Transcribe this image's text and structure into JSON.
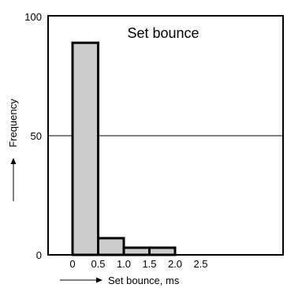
{
  "chart_data": {
    "type": "bar",
    "title": "Set bounce",
    "xlabel": "Set bounce, ms",
    "ylabel": "Frequency",
    "bins": [
      {
        "x0": 0.0,
        "x1": 0.5,
        "value": 89
      },
      {
        "x0": 0.5,
        "x1": 1.0,
        "value": 7
      },
      {
        "x0": 1.0,
        "x1": 1.5,
        "value": 3
      },
      {
        "x0": 1.5,
        "x1": 2.0,
        "value": 3
      }
    ],
    "x_ticks": [
      "0",
      "0.5",
      "1.0",
      "1.5",
      "2.0",
      "2.5"
    ],
    "y_ticks": [
      "0",
      "50",
      "100"
    ],
    "xlim": [
      0,
      2.5
    ],
    "ylim": [
      0,
      100
    ],
    "reference_line_y": 50,
    "grid": false,
    "bar_fill": "#cccccc",
    "bar_stroke": "#000000"
  }
}
